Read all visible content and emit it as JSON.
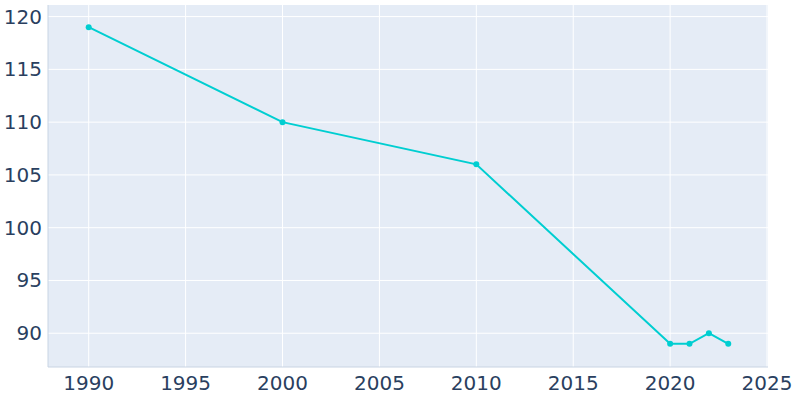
{
  "chart_data": {
    "type": "line",
    "x": [
      1990,
      2000,
      2010,
      2020,
      2021,
      2022,
      2023
    ],
    "values": [
      119,
      110,
      106,
      89,
      89,
      90,
      89
    ],
    "color": "#00ced1",
    "marker": "circle",
    "xlim": [
      1987.9,
      2025.05
    ],
    "xticks": [
      1990,
      1995,
      2000,
      2005,
      2010,
      2015,
      2020,
      2025
    ],
    "ylim": [
      86.8,
      121.1
    ],
    "yticks": [
      90,
      95,
      100,
      105,
      110,
      115,
      120
    ],
    "grid": true
  }
}
